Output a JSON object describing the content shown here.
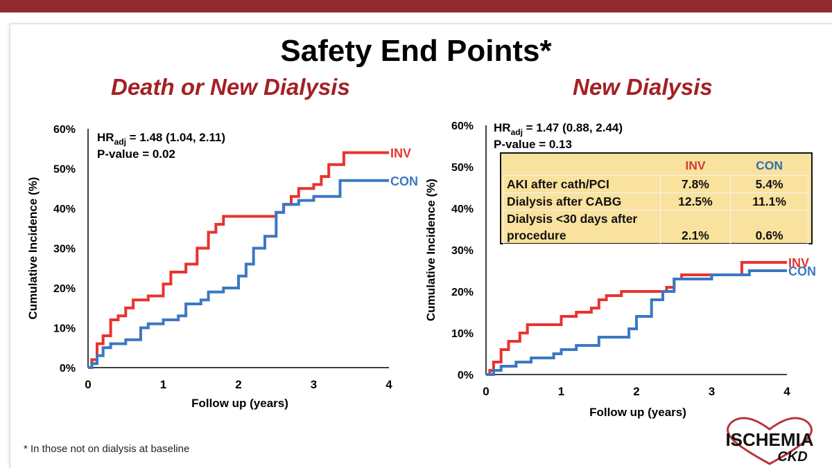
{
  "slide": {
    "title": "Safety End Points*",
    "footnote": "* In those not on dialysis at baseline",
    "logo": {
      "main": "ISCHEMIA",
      "sub": "CKD"
    }
  },
  "colors": {
    "inv": "#e8332f",
    "con": "#3a78c4",
    "panel_title": "#a42024",
    "top_bar": "#8f2a2d",
    "table_bg": "#f9e29d"
  },
  "chart_data": [
    {
      "type": "line",
      "title": "Death or New Dialysis",
      "xlabel": "Follow up (years)",
      "ylabel": "Cumulative Incidence (%)",
      "xlim": [
        0,
        4
      ],
      "ylim": [
        0,
        60
      ],
      "xticks": [
        "0",
        "1",
        "2",
        "3",
        "4"
      ],
      "yticks": [
        "0%",
        "10%",
        "20%",
        "30%",
        "40%",
        "50%",
        "60%"
      ],
      "annotation": {
        "hr_prefix": "HR",
        "hr_sub": "adj",
        "hr_value": " = 1.48 (1.04, 2.11)",
        "p_value": "P-value = 0.02"
      },
      "series": [
        {
          "name": "INV",
          "color": "#e8332f",
          "x": [
            0,
            0.05,
            0.12,
            0.2,
            0.3,
            0.4,
            0.5,
            0.6,
            0.8,
            1.0,
            1.1,
            1.3,
            1.45,
            1.6,
            1.7,
            1.8,
            2.0,
            2.2,
            2.4,
            2.5,
            2.6,
            2.7,
            2.8,
            3.0,
            3.1,
            3.2,
            3.3,
            3.4,
            3.5,
            4.0
          ],
          "y": [
            0,
            2,
            6,
            8,
            12,
            13,
            15,
            17,
            18,
            21,
            24,
            26,
            30,
            34,
            36,
            38,
            38,
            38,
            38,
            39,
            41,
            43,
            45,
            46,
            48,
            51,
            51,
            54,
            54,
            54
          ]
        },
        {
          "name": "CON",
          "color": "#3a78c4",
          "x": [
            0,
            0.05,
            0.12,
            0.2,
            0.3,
            0.5,
            0.7,
            0.8,
            1.0,
            1.2,
            1.3,
            1.5,
            1.6,
            1.8,
            2.0,
            2.1,
            2.2,
            2.35,
            2.5,
            2.6,
            2.8,
            3.0,
            3.3,
            3.35,
            4.0
          ],
          "y": [
            0,
            1,
            3,
            5,
            6,
            7,
            10,
            11,
            12,
            13,
            16,
            17,
            19,
            20,
            23,
            26,
            30,
            33,
            39,
            41,
            42,
            43,
            43,
            47,
            47
          ]
        }
      ]
    },
    {
      "type": "line",
      "title": "New Dialysis",
      "xlabel": "Follow up (years)",
      "ylabel": "Cumulative Incidence (%)",
      "xlim": [
        0,
        4
      ],
      "ylim": [
        0,
        60
      ],
      "xticks": [
        "0",
        "1",
        "2",
        "3",
        "4"
      ],
      "yticks": [
        "0%",
        "10%",
        "20%",
        "30%",
        "40%",
        "50%",
        "60%"
      ],
      "annotation": {
        "hr_prefix": "HR",
        "hr_sub": "adj",
        "hr_value": " = 1.47 (0.88, 2.44)",
        "p_value": "P-value = 0.13"
      },
      "series": [
        {
          "name": "INV",
          "color": "#e8332f",
          "x": [
            0,
            0.05,
            0.1,
            0.2,
            0.3,
            0.45,
            0.55,
            0.8,
            1.0,
            1.2,
            1.4,
            1.5,
            1.6,
            1.8,
            2.0,
            2.4,
            2.5,
            2.6,
            3.0,
            3.2,
            3.4,
            3.6,
            4.0
          ],
          "y": [
            0,
            1,
            3,
            6,
            8,
            10,
            12,
            12,
            14,
            15,
            16,
            18,
            19,
            20,
            20,
            21,
            23,
            24,
            24,
            24,
            27,
            27,
            27
          ]
        },
        {
          "name": "CON",
          "color": "#3a78c4",
          "x": [
            0,
            0.1,
            0.2,
            0.4,
            0.6,
            0.9,
            1.0,
            1.2,
            1.5,
            1.8,
            1.9,
            2.0,
            2.2,
            2.35,
            2.5,
            2.7,
            3.0,
            3.5,
            4.0
          ],
          "y": [
            0,
            1,
            2,
            3,
            4,
            5,
            6,
            7,
            9,
            9,
            11,
            14,
            18,
            20,
            23,
            23,
            24,
            25,
            25
          ]
        }
      ]
    }
  ],
  "table": {
    "headers": [
      "",
      "INV",
      "CON"
    ],
    "rows": [
      {
        "label": "AKI after cath/PCI",
        "inv": "7.8%",
        "con": "5.4%"
      },
      {
        "label": "Dialysis after CABG",
        "inv": "12.5%",
        "con": "11.1%"
      },
      {
        "label": "Dialysis <30 days after",
        "inv": "",
        "con": ""
      },
      {
        "label": "procedure",
        "inv": "2.1%",
        "con": "0.6%"
      }
    ]
  }
}
